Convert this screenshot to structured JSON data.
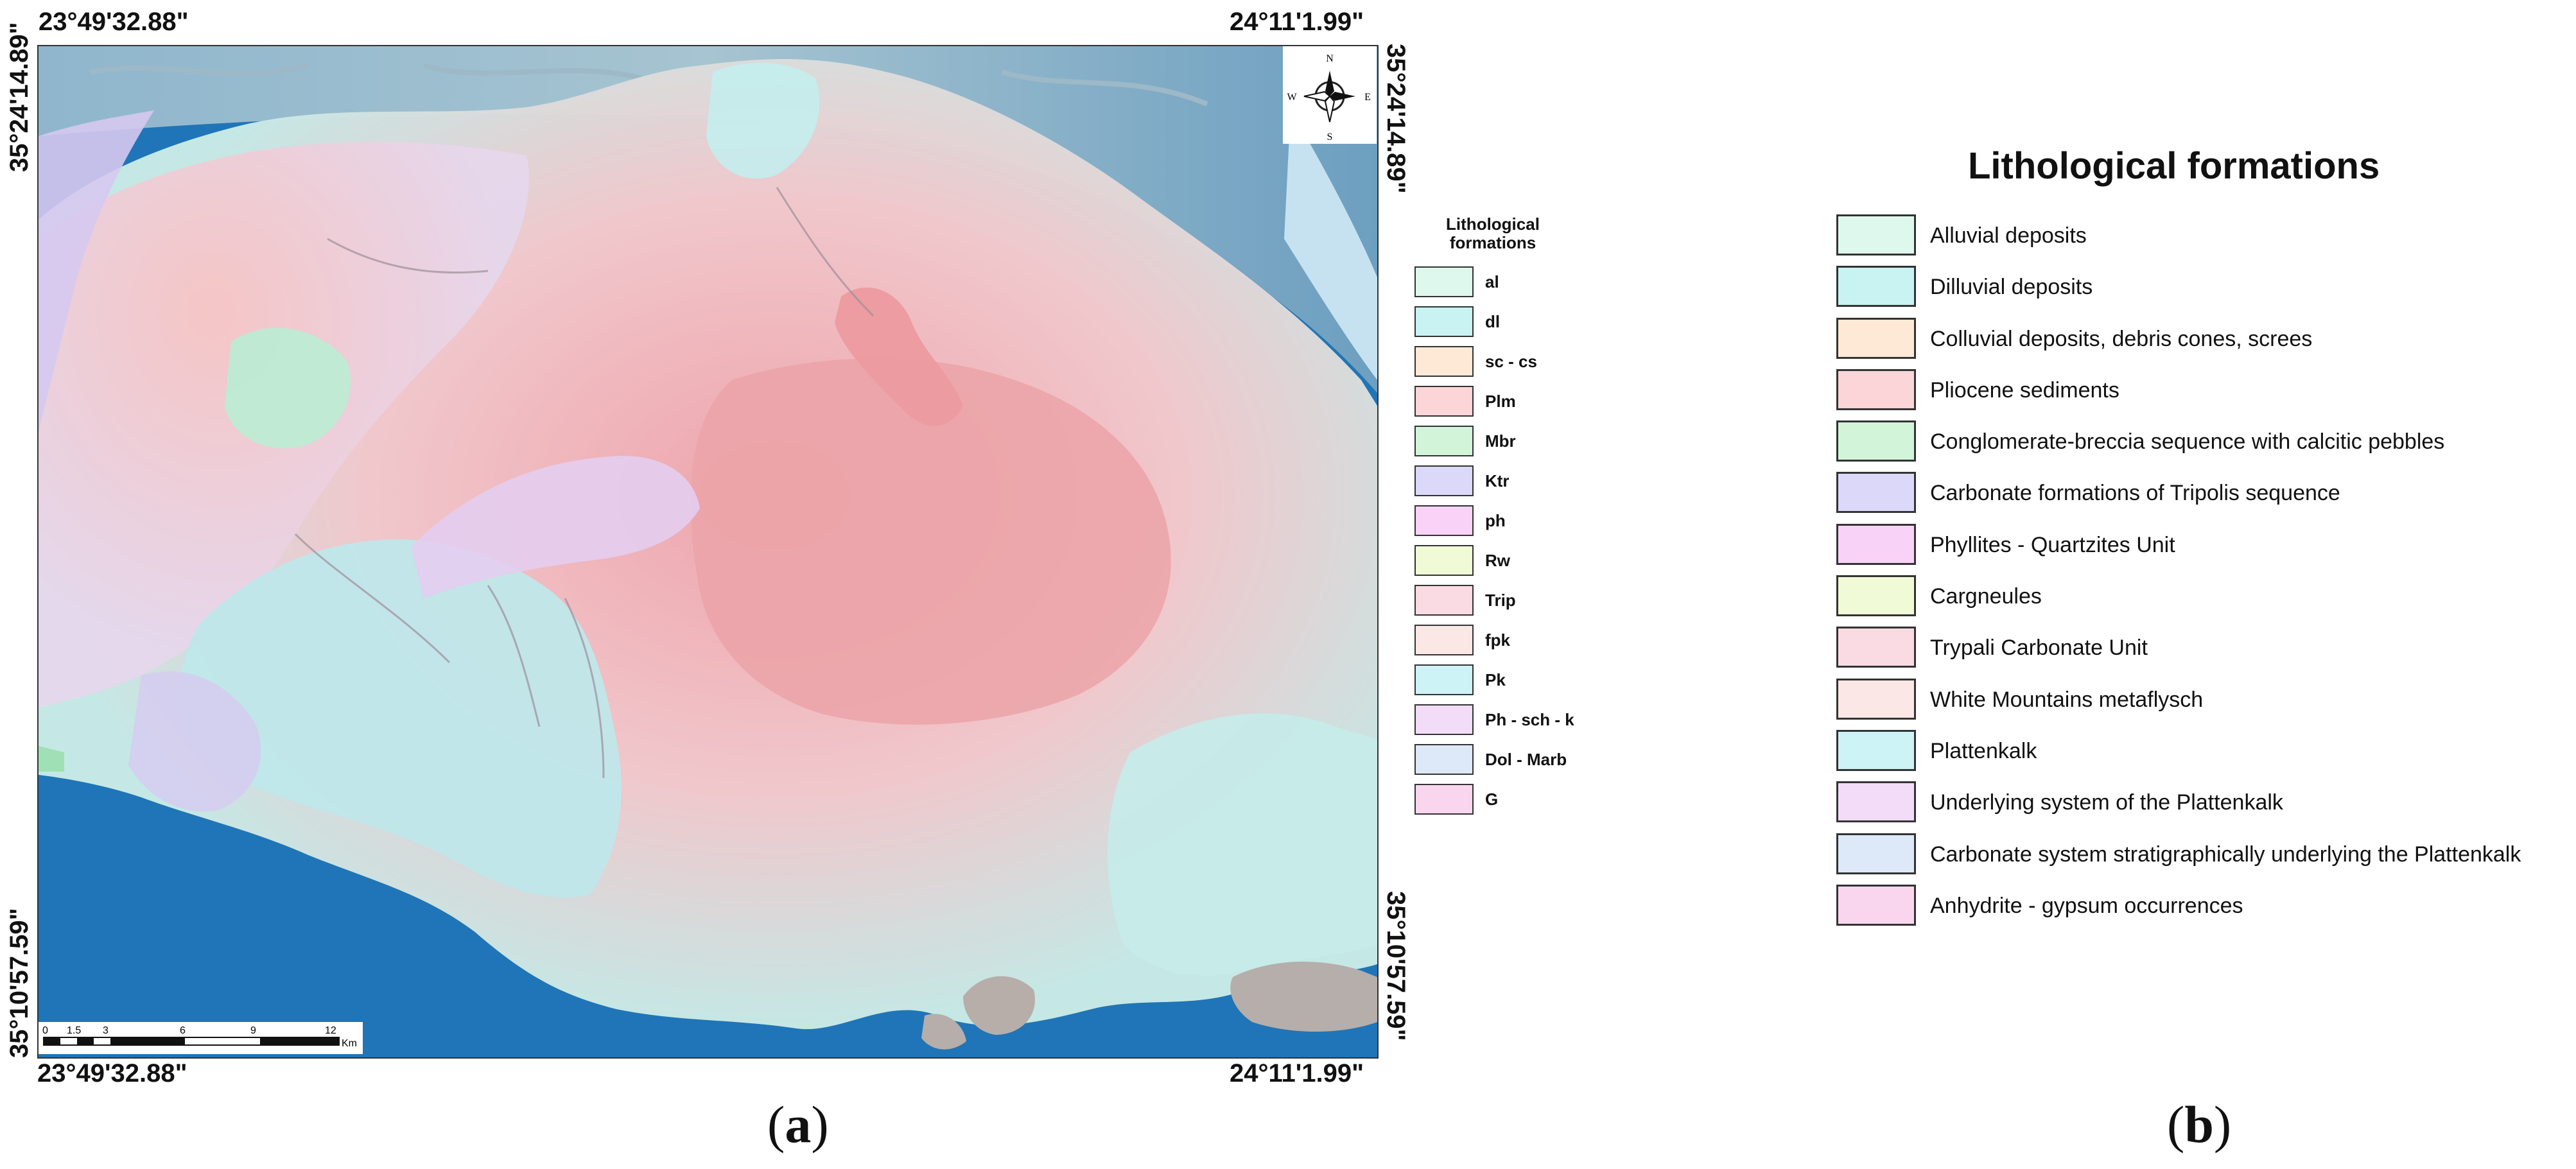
{
  "map": {
    "corner_coords": {
      "top_left_lon": "23°49'32.88\"",
      "top_right_lon": "24°11'1.99\"",
      "bottom_left_lon": "23°49'32.88\"",
      "bottom_right_lon": "24°11'1.99\"",
      "left_top_lat": "35°24'14.89\"",
      "left_bottom_lat": "35°10'57.59\"",
      "right_top_lat": "35°24'14.89\"",
      "right_bottom_lat": "35°10'57.59\""
    },
    "north_arrow": {
      "icon": "compass-rose-icon",
      "n": "N",
      "e": "E",
      "s": "S",
      "w": "W"
    },
    "scale_bar": {
      "ticks": [
        "0",
        "1.5",
        "3",
        "6",
        "9",
        "12"
      ],
      "unit": "Km"
    },
    "colors": {
      "sea": "#1f75b7",
      "land_high": "#e9a0a6",
      "land_low": "#b9ece8"
    }
  },
  "small_legend": {
    "title_line1": "Lithological",
    "title_line2": "formations",
    "items": [
      {
        "code": "al",
        "color": "#dff8ee"
      },
      {
        "code": "dl",
        "color": "#c9f2f2"
      },
      {
        "code": "sc - cs",
        "color": "#fde9d6"
      },
      {
        "code": "Plm",
        "color": "#fbd5d7"
      },
      {
        "code": "Mbr",
        "color": "#d2f5d9"
      },
      {
        "code": "Ktr",
        "color": "#dcd8fa"
      },
      {
        "code": "ph",
        "color": "#f9d2f7"
      },
      {
        "code": "Rw",
        "color": "#f1fad7"
      },
      {
        "code": "Trip",
        "color": "#fbdbe3"
      },
      {
        "code": "fpk",
        "color": "#fbe8e6"
      },
      {
        "code": "Pk",
        "color": "#cdf3f7"
      },
      {
        "code": "Ph - sch - k",
        "color": "#f3dcf7"
      },
      {
        "code": "Dol - Marb",
        "color": "#dde9f9"
      },
      {
        "code": "G",
        "color": "#fad6ee"
      }
    ]
  },
  "big_legend": {
    "title": "Lithological formations",
    "items": [
      {
        "label": "Alluvial deposits",
        "color": "#dff8ee"
      },
      {
        "label": "Dilluvial deposits",
        "color": "#c9f2f2"
      },
      {
        "label": "Colluvial deposits, debris cones, screes",
        "color": "#fde9d6"
      },
      {
        "label": "Pliocene sediments",
        "color": "#fbd5d7"
      },
      {
        "label": "Conglomerate-breccia sequence with calcitic pebbles",
        "color": "#d2f5d9"
      },
      {
        "label": "Carbonate formations of Tripolis sequence",
        "color": "#dcd8fa"
      },
      {
        "label": "Phyllites - Quartzites Unit",
        "color": "#f9d2f7"
      },
      {
        "label": "Cargneules",
        "color": "#f1fad7"
      },
      {
        "label": "Trypali Carbonate Unit",
        "color": "#fbdbe3"
      },
      {
        "label": "White Mountains metaflysch",
        "color": "#fbe8e6"
      },
      {
        "label": "Plattenkalk",
        "color": "#cdf3f7"
      },
      {
        "label": "Underlying system of the Plattenkalk",
        "color": "#f3dcf7"
      },
      {
        "label": "Carbonate system stratigraphically underlying the Plattenkalk",
        "color": "#dde9f9"
      },
      {
        "label": "Anhydrite - gypsum occurrences",
        "color": "#fad6ee"
      }
    ]
  },
  "panel_labels": {
    "a": "a",
    "b": "b"
  }
}
